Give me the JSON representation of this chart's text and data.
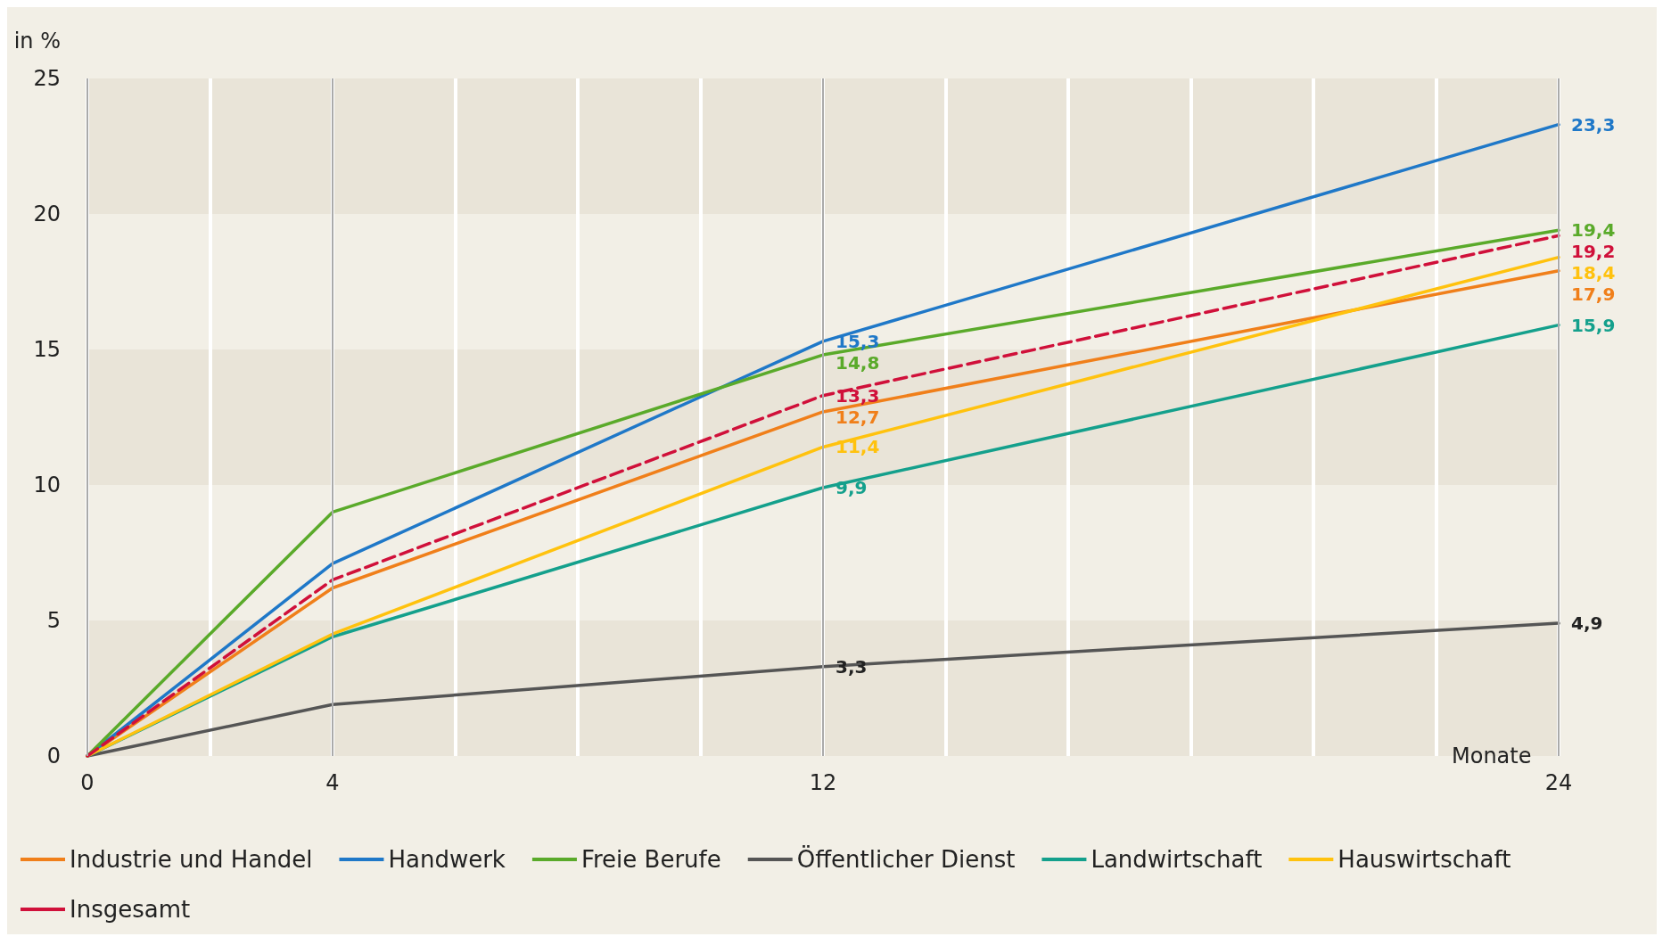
{
  "chart_data": {
    "type": "line",
    "ylabel": "in %",
    "xlabel": "Monate",
    "x": [
      0,
      4,
      12,
      24
    ],
    "xlim": [
      0,
      24
    ],
    "xticks": [
      0,
      {
        "value": 2,
        "label": null
      },
      4,
      {
        "value": 6,
        "label": null
      },
      {
        "value": 8,
        "label": null
      },
      {
        "value": 10,
        "label": null
      },
      12,
      {
        "value": 14,
        "label": null
      },
      {
        "value": 16,
        "label": null
      },
      {
        "value": 18,
        "label": null
      },
      {
        "value": 20,
        "label": null
      },
      {
        "value": 22,
        "label": null
      },
      24
    ],
    "ylim": [
      0,
      25
    ],
    "yticks": [
      0,
      5,
      10,
      15,
      20,
      25
    ],
    "grid": true,
    "legend": "bottom",
    "marker": "none",
    "series": [
      {
        "name": "Industrie und Handel",
        "color": "#f07f1a",
        "values": [
          0,
          6.2,
          12.7,
          17.9
        ],
        "value_labels": [
          null,
          null,
          "12,7",
          "17,9"
        ]
      },
      {
        "name": "Handwerk",
        "color": "#1f78c8",
        "values": [
          0,
          7.1,
          15.3,
          23.3
        ],
        "value_labels": [
          null,
          null,
          "15,3",
          "23,3"
        ]
      },
      {
        "name": "Freie Berufe",
        "color": "#5aaa2a",
        "values": [
          0,
          9.0,
          14.8,
          19.4
        ],
        "value_labels": [
          null,
          null,
          "14,8",
          "19,4"
        ]
      },
      {
        "name": "Öffentlicher Dienst",
        "color": "#555555",
        "values": [
          0,
          1.9,
          3.3,
          4.9
        ],
        "value_labels": [
          null,
          null,
          "3,3",
          "4,9"
        ]
      },
      {
        "name": "Landwirtschaft",
        "color": "#14a08c",
        "values": [
          0,
          4.4,
          9.9,
          15.9
        ],
        "value_labels": [
          null,
          null,
          "9,9",
          "15,9"
        ]
      },
      {
        "name": "Hauswirtschaft",
        "color": "#ffc20e",
        "values": [
          0,
          4.5,
          11.4,
          18.4
        ],
        "value_labels": [
          null,
          null,
          "11,4",
          "18,4"
        ]
      },
      {
        "name": "Insgesamt",
        "color": "#d0103a",
        "line_style": "dashed",
        "values": [
          0,
          6.5,
          13.3,
          19.2
        ],
        "value_labels": [
          null,
          null,
          "13,3",
          "19,2"
        ]
      }
    ]
  }
}
